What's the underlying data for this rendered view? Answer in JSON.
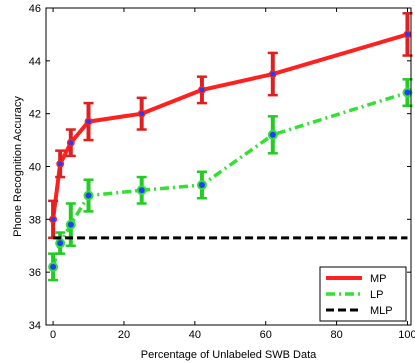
{
  "chart_data": {
    "type": "line",
    "xlabel": "Percentage of Unlabeled SWB Data",
    "ylabel": "Phone Recognition Accuracy",
    "xlim": [
      -2,
      101
    ],
    "ylim": [
      34,
      46
    ],
    "xticks": [
      "0",
      "20",
      "40",
      "60",
      "80",
      "100"
    ],
    "yticks": [
      "34",
      "36",
      "38",
      "40",
      "42",
      "44",
      "46"
    ],
    "grid": false,
    "legend_position": "bottom-right",
    "series": [
      {
        "name": "MP",
        "color": "#ff2020",
        "line_style": "solid",
        "marker_face": "#1f3fff",
        "errorbar_color": "#e02020",
        "x": [
          0,
          2,
          5,
          10,
          25,
          42,
          62,
          100
        ],
        "y": [
          38.0,
          40.1,
          40.9,
          41.7,
          42.0,
          42.9,
          43.5,
          45.0
        ],
        "err": [
          0.7,
          0.5,
          0.5,
          0.7,
          0.6,
          0.5,
          0.8,
          0.8
        ]
      },
      {
        "name": "LP",
        "color": "#33e033",
        "line_style": "dashdot",
        "marker_face": "#1f3fff",
        "errorbar_color": "#22cc22",
        "x": [
          0,
          2,
          5,
          10,
          25,
          42,
          62,
          100
        ],
        "y": [
          36.2,
          37.1,
          37.8,
          38.9,
          39.1,
          39.3,
          41.2,
          42.8
        ],
        "err": [
          0.5,
          0.4,
          0.8,
          0.6,
          0.5,
          0.5,
          0.7,
          0.5
        ]
      },
      {
        "name": "MLP",
        "color": "#000000",
        "line_style": "dashed",
        "x": [
          0,
          100
        ],
        "y": [
          37.3,
          37.3
        ]
      }
    ]
  }
}
